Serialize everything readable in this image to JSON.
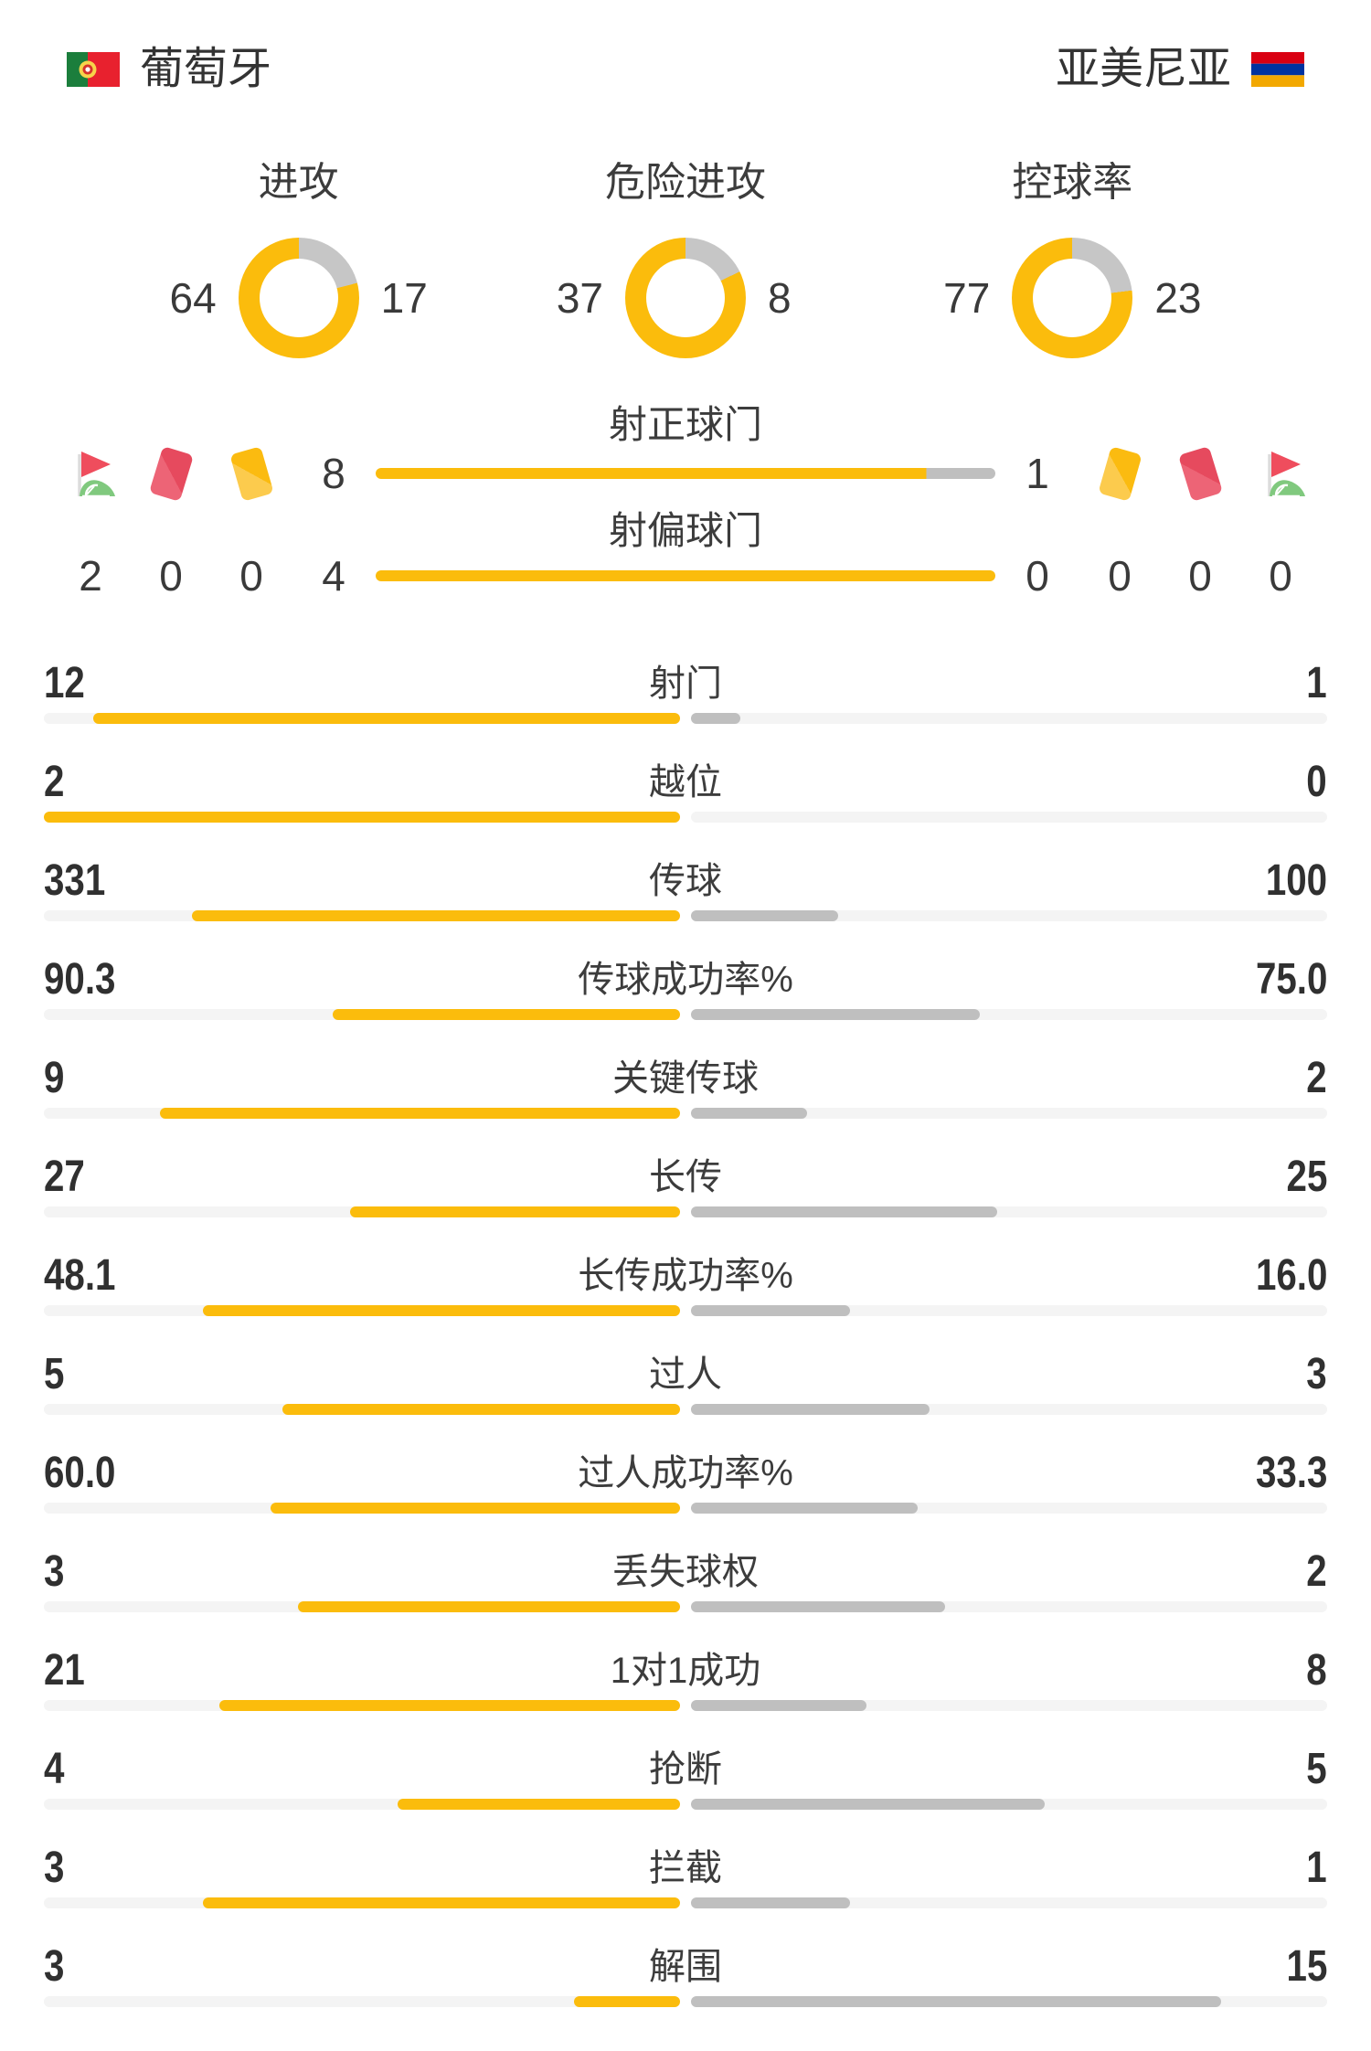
{
  "header": {
    "home": {
      "name": "葡萄牙"
    },
    "away": {
      "name": "亚美尼亚"
    }
  },
  "colors": {
    "home": "#fbbc0c",
    "away": "#bfbfbf",
    "track": "#f4f4f4",
    "donut_away": "#c6c6c6"
  },
  "chart_data": {
    "type": "bar",
    "subtype": "head-to-head match statistics",
    "teams": {
      "home": "葡萄牙",
      "away": "亚美尼亚"
    },
    "donuts": [
      {
        "label": "进攻",
        "home": 64,
        "away": 17
      },
      {
        "label": "危险进攻",
        "home": 37,
        "away": 8
      },
      {
        "label": "控球率",
        "home": 77,
        "away": 23
      }
    ],
    "discipline": {
      "home": {
        "corners": 2,
        "red_cards": 0,
        "yellow_cards": 0
      },
      "away": {
        "yellow_cards": 0,
        "red_cards": 0,
        "corners": 0
      }
    },
    "goal_rows": [
      {
        "label": "射正球门",
        "home": 8,
        "away": 1
      },
      {
        "label": "射偏球门",
        "home": 4,
        "away": 0
      }
    ],
    "stats": [
      {
        "label": "射门",
        "home": 12,
        "away": 1
      },
      {
        "label": "越位",
        "home": 2,
        "away": 0
      },
      {
        "label": "传球",
        "home": 331,
        "away": 100
      },
      {
        "label": "传球成功率%",
        "home": 90.3,
        "away": 75.0,
        "decimals": 1
      },
      {
        "label": "关键传球",
        "home": 9,
        "away": 2
      },
      {
        "label": "长传",
        "home": 27,
        "away": 25
      },
      {
        "label": "长传成功率%",
        "home": 48.1,
        "away": 16.0,
        "decimals": 1
      },
      {
        "label": "过人",
        "home": 5,
        "away": 3
      },
      {
        "label": "过人成功率%",
        "home": 60.0,
        "away": 33.3,
        "decimals": 1
      },
      {
        "label": "丢失球权",
        "home": 3,
        "away": 2
      },
      {
        "label": "1对1成功",
        "home": 21,
        "away": 8
      },
      {
        "label": "抢断",
        "home": 4,
        "away": 5
      },
      {
        "label": "拦截",
        "home": 3,
        "away": 1
      },
      {
        "label": "解围",
        "home": 3,
        "away": 15
      }
    ]
  }
}
